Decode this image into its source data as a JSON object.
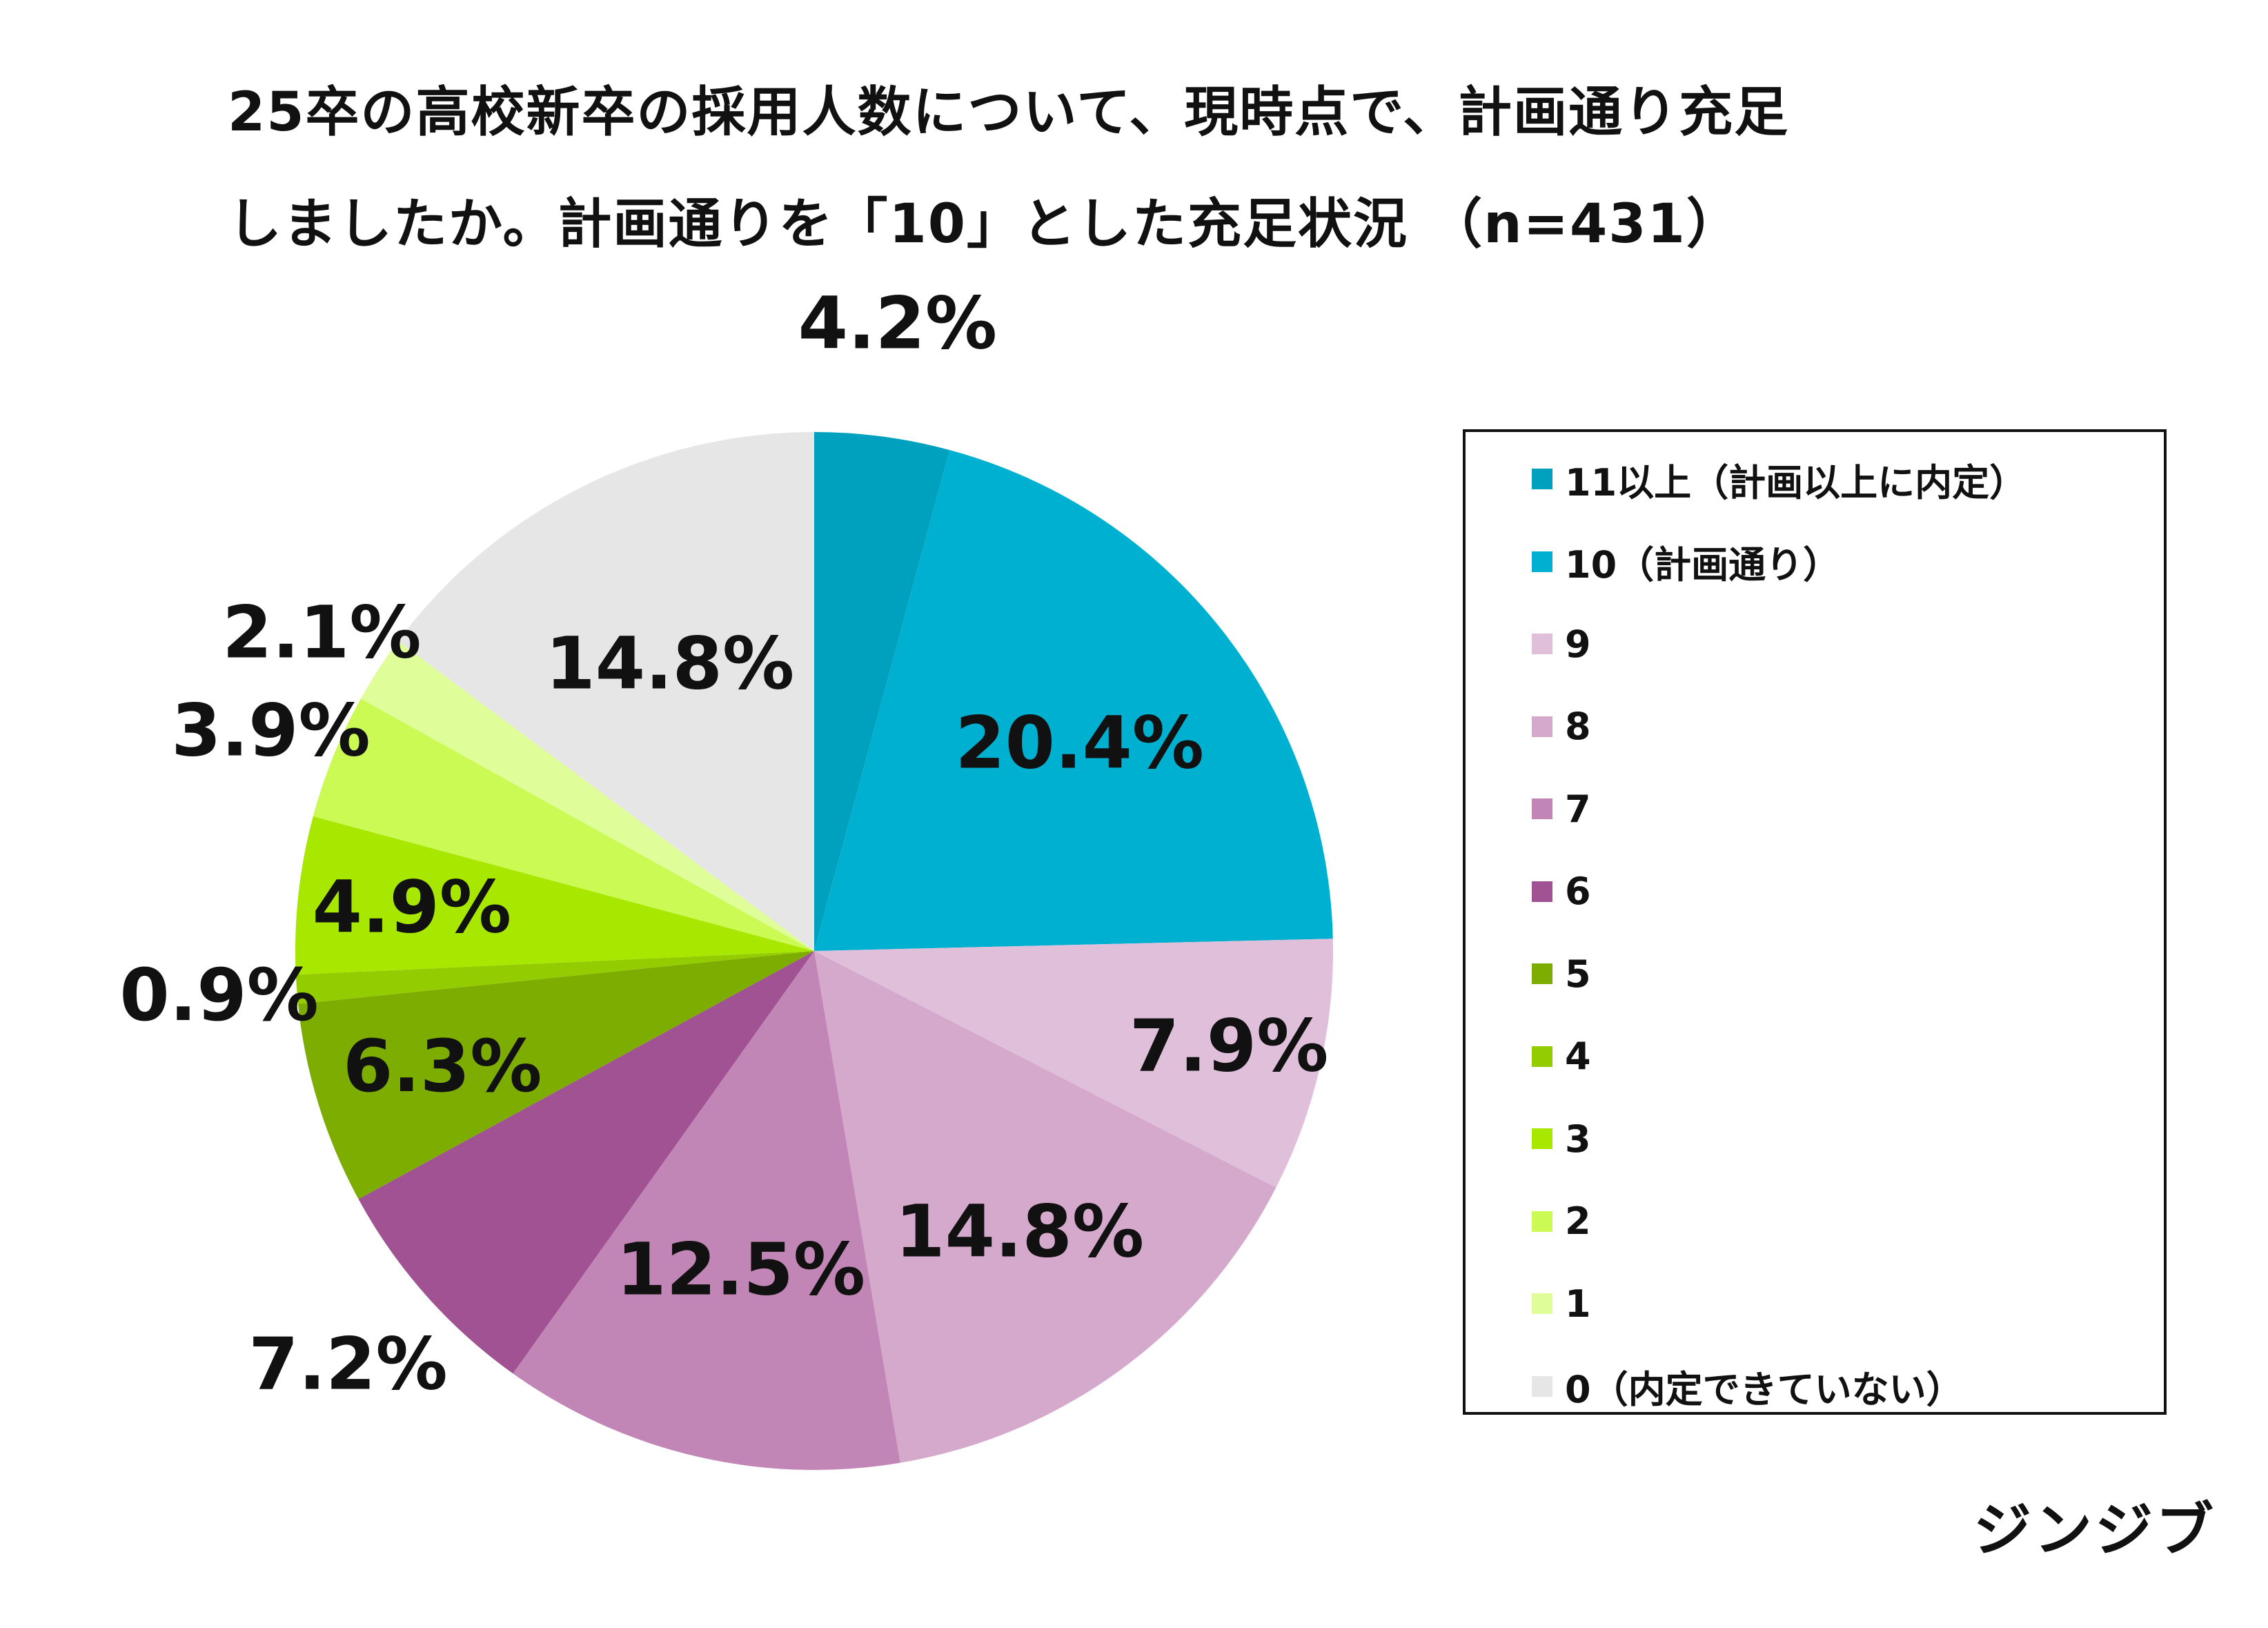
{
  "title": {
    "line1": "25卒の高校新卒の採用人数について、現時点で、計画通り充足",
    "line2": "しましたか。計画通りを「10」とした充足状況 （n=431）"
  },
  "brand": "ジンジブ",
  "chart_data": {
    "type": "pie",
    "title": "25卒の高校新卒の採用人数について、現時点で、計画通り充足しましたか。計画通りを「10」とした充足状況 （n=431）",
    "legend_position": "right",
    "start_angle_deg": 0,
    "direction": "clockwise",
    "slices": [
      {
        "label": "11以上（計画以上に内定）",
        "value": 4.2,
        "display": "4.2%",
        "color": "#00A0BF"
      },
      {
        "label": "10（計画通り）",
        "value": 20.4,
        "display": "20.4%",
        "color": "#00B0D0"
      },
      {
        "label": "9",
        "value": 7.9,
        "display": "7.9%",
        "color": "#E0BFDA"
      },
      {
        "label": "8",
        "value": 14.8,
        "display": "14.8%",
        "color": "#D4A9CC"
      },
      {
        "label": "7",
        "value": 12.5,
        "display": "12.5%",
        "color": "#C186B5"
      },
      {
        "label": "6",
        "value": 7.2,
        "display": "7.2%",
        "color": "#A05292"
      },
      {
        "label": "5",
        "value": 6.3,
        "display": "6.3%",
        "color": "#7DAD00"
      },
      {
        "label": "4",
        "value": 0.9,
        "display": "0.9%",
        "color": "#93CC00"
      },
      {
        "label": "3",
        "value": 4.9,
        "display": "4.9%",
        "color": "#A8E800"
      },
      {
        "label": "2",
        "value": 3.9,
        "display": "3.9%",
        "color": "#CCFA55"
      },
      {
        "label": "1",
        "value": 2.1,
        "display": "2.1%",
        "color": "#DFFD99"
      },
      {
        "label": "0（内定できていない）",
        "value": 14.8,
        "display": "14.8%",
        "color": "#E6E6E6"
      }
    ]
  }
}
